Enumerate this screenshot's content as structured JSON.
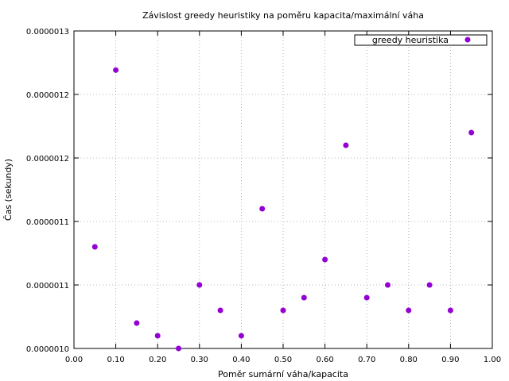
{
  "chart_data": {
    "type": "scatter",
    "title": "Závislost greedy heuristiky na poměru kapacita/maximální váha",
    "xlabel": "Poměr sumární váha/kapacita",
    "ylabel": "Čas (sekundy)",
    "xlim": [
      0.0,
      1.0
    ],
    "ylim": [
      1e-06,
      1.3e-06
    ],
    "x_ticks": [
      "0.00",
      "0.10",
      "0.20",
      "0.30",
      "0.40",
      "0.50",
      "0.60",
      "0.70",
      "0.80",
      "0.90",
      "1.00"
    ],
    "y_ticks": [
      "0.0000010",
      "0.0000011",
      "0.0000011",
      "0.0000012",
      "0.0000012",
      "0.0000013"
    ],
    "y_tick_values": [
      1e-06,
      1.06e-06,
      1.12e-06,
      1.18e-06,
      1.24e-06,
      1.3e-06
    ],
    "grid": true,
    "legend_position": "top-right",
    "series": [
      {
        "name": "greedy heuristika",
        "color": "#9400d3",
        "x": [
          0.05,
          0.1,
          0.15,
          0.2,
          0.25,
          0.3,
          0.35,
          0.4,
          0.45,
          0.5,
          0.55,
          0.6,
          0.65,
          0.7,
          0.75,
          0.8,
          0.85,
          0.9,
          0.95
        ],
        "y": [
          1.096e-06,
          1.263e-06,
          1.024e-06,
          1.012e-06,
          1e-06,
          1.06e-06,
          1.036e-06,
          1.012e-06,
          1.132e-06,
          1.036e-06,
          1.048e-06,
          1.084e-06,
          1.192e-06,
          1.048e-06,
          1.06e-06,
          1.036e-06,
          1.06e-06,
          1.036e-06,
          1.204e-06
        ]
      }
    ]
  }
}
